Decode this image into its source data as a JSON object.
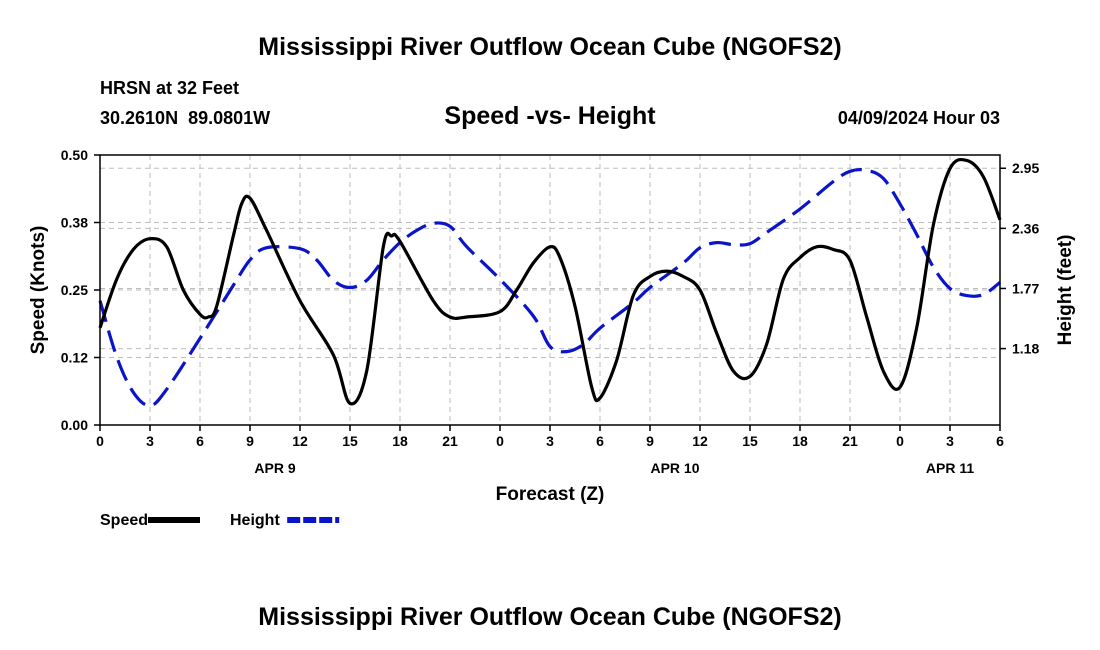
{
  "chart_data": {
    "type": "line",
    "title": "Mississippi River Outflow Ocean Cube (NGOFS2)",
    "title_bottom": "Mississippi River Outflow Ocean Cube (NGOFS2)",
    "subtitle": "Speed -vs- Height",
    "station_label": "HRSN at 32 Feet",
    "coords": "30.2610N  89.0801W",
    "date_label": "04/09/2024 Hour 03",
    "xlabel": "Forecast (Z)",
    "ylabel": "Speed (Knots)",
    "ylabel_right": "Height (feet)",
    "xlim": [
      0,
      54
    ],
    "ylim": [
      0,
      0.5
    ],
    "ylim_right": [
      0.43,
      3.08
    ],
    "x_ticks": [
      {
        "x": 0,
        "label": "0"
      },
      {
        "x": 3,
        "label": "3"
      },
      {
        "x": 6,
        "label": "6"
      },
      {
        "x": 9,
        "label": "9"
      },
      {
        "x": 12,
        "label": "12"
      },
      {
        "x": 15,
        "label": "15"
      },
      {
        "x": 18,
        "label": "18"
      },
      {
        "x": 21,
        "label": "21"
      },
      {
        "x": 24,
        "label": "0"
      },
      {
        "x": 27,
        "label": "3"
      },
      {
        "x": 30,
        "label": "6"
      },
      {
        "x": 33,
        "label": "9"
      },
      {
        "x": 36,
        "label": "12"
      },
      {
        "x": 39,
        "label": "15"
      },
      {
        "x": 42,
        "label": "18"
      },
      {
        "x": 45,
        "label": "21"
      },
      {
        "x": 48,
        "label": "0"
      },
      {
        "x": 51,
        "label": "3"
      },
      {
        "x": 54,
        "label": "6"
      }
    ],
    "date_ticks": [
      {
        "x": 10.5,
        "label": "APR 9"
      },
      {
        "x": 34.5,
        "label": "APR 10"
      },
      {
        "x": 51.0,
        "label": "APR 11"
      }
    ],
    "y_ticks": [
      {
        "v": 0.0,
        "label": "0.00"
      },
      {
        "v": 0.125,
        "label": "0.12"
      },
      {
        "v": 0.25,
        "label": "0.25"
      },
      {
        "v": 0.375,
        "label": "0.38"
      },
      {
        "v": 0.5,
        "label": "0.50"
      }
    ],
    "y_ticks_right": [
      {
        "v": 1.18,
        "label": "1.18"
      },
      {
        "v": 1.77,
        "label": "1.77"
      },
      {
        "v": 2.36,
        "label": "2.36"
      },
      {
        "v": 2.95,
        "label": "2.95"
      }
    ],
    "series": [
      {
        "name": "Speed",
        "axis": "left",
        "color": "#000000",
        "dash": "solid",
        "points": [
          [
            0,
            0.18
          ],
          [
            1,
            0.27
          ],
          [
            2,
            0.325
          ],
          [
            3,
            0.345
          ],
          [
            4,
            0.33
          ],
          [
            5,
            0.25
          ],
          [
            6,
            0.205
          ],
          [
            6.5,
            0.2
          ],
          [
            7,
            0.22
          ],
          [
            8,
            0.35
          ],
          [
            8.5,
            0.41
          ],
          [
            9,
            0.42
          ],
          [
            10,
            0.36
          ],
          [
            12,
            0.23
          ],
          [
            14,
            0.13
          ],
          [
            15,
            0.04
          ],
          [
            16,
            0.1
          ],
          [
            17,
            0.33
          ],
          [
            17.5,
            0.35
          ],
          [
            18,
            0.34
          ],
          [
            20,
            0.23
          ],
          [
            21,
            0.2
          ],
          [
            22,
            0.2
          ],
          [
            24,
            0.21
          ],
          [
            25,
            0.25
          ],
          [
            26,
            0.3
          ],
          [
            27,
            0.33
          ],
          [
            27.6,
            0.31
          ],
          [
            28.5,
            0.22
          ],
          [
            29.5,
            0.07
          ],
          [
            30,
            0.05
          ],
          [
            31,
            0.12
          ],
          [
            32,
            0.24
          ],
          [
            33,
            0.275
          ],
          [
            34,
            0.285
          ],
          [
            35,
            0.275
          ],
          [
            36,
            0.25
          ],
          [
            37,
            0.17
          ],
          [
            38,
            0.1
          ],
          [
            39,
            0.09
          ],
          [
            40,
            0.15
          ],
          [
            41,
            0.27
          ],
          [
            42,
            0.31
          ],
          [
            43,
            0.33
          ],
          [
            44,
            0.325
          ],
          [
            45,
            0.305
          ],
          [
            46,
            0.2
          ],
          [
            47,
            0.1
          ],
          [
            48,
            0.07
          ],
          [
            49,
            0.18
          ],
          [
            50,
            0.37
          ],
          [
            51,
            0.475
          ],
          [
            52,
            0.49
          ],
          [
            53,
            0.46
          ],
          [
            54,
            0.38
          ]
        ]
      },
      {
        "name": "Height",
        "axis": "right",
        "color": "#0a14c8",
        "dash": "dashed",
        "points": [
          [
            0,
            1.65
          ],
          [
            1,
            1.1
          ],
          [
            2,
            0.75
          ],
          [
            3,
            0.62
          ],
          [
            4,
            0.78
          ],
          [
            6,
            1.28
          ],
          [
            8,
            1.8
          ],
          [
            9,
            2.05
          ],
          [
            10,
            2.17
          ],
          [
            12,
            2.16
          ],
          [
            13,
            2.05
          ],
          [
            14,
            1.85
          ],
          [
            15,
            1.78
          ],
          [
            16,
            1.85
          ],
          [
            17,
            2.05
          ],
          [
            18,
            2.22
          ],
          [
            19,
            2.34
          ],
          [
            20,
            2.41
          ],
          [
            21,
            2.38
          ],
          [
            22,
            2.18
          ],
          [
            24,
            1.86
          ],
          [
            26,
            1.5
          ],
          [
            27,
            1.2
          ],
          [
            28,
            1.15
          ],
          [
            29,
            1.22
          ],
          [
            30,
            1.38
          ],
          [
            32,
            1.63
          ],
          [
            33,
            1.78
          ],
          [
            35,
            2.02
          ],
          [
            36,
            2.17
          ],
          [
            37,
            2.22
          ],
          [
            38,
            2.2
          ],
          [
            39,
            2.21
          ],
          [
            40,
            2.32
          ],
          [
            42,
            2.55
          ],
          [
            44,
            2.82
          ],
          [
            45,
            2.92
          ],
          [
            46,
            2.93
          ],
          [
            47,
            2.85
          ],
          [
            48,
            2.6
          ],
          [
            49,
            2.3
          ],
          [
            50,
            1.98
          ],
          [
            51,
            1.77
          ],
          [
            52,
            1.7
          ],
          [
            53,
            1.71
          ],
          [
            54,
            1.83
          ]
        ]
      }
    ],
    "legend": [
      {
        "name": "Speed",
        "color": "#000000",
        "dash": "solid"
      },
      {
        "name": "Height",
        "color": "#0a14c8",
        "dash": "dashed"
      }
    ]
  }
}
